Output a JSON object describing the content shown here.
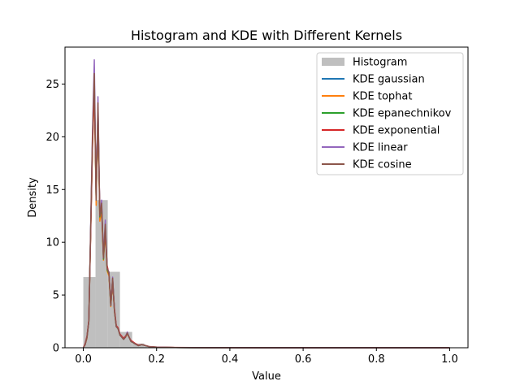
{
  "chart_data": {
    "type": "histogram+line",
    "title": "Histogram and KDE with Different Kernels",
    "xlabel": "Value",
    "ylabel": "Density",
    "xlim": [
      -0.05,
      1.05
    ],
    "ylim": [
      0,
      28.5
    ],
    "xticks": [
      0.0,
      0.2,
      0.4,
      0.6,
      0.8,
      1.0
    ],
    "xtick_labels": [
      "0.0",
      "0.2",
      "0.4",
      "0.6",
      "0.8",
      "1.0"
    ],
    "yticks": [
      0,
      5,
      10,
      15,
      20,
      25
    ],
    "ytick_labels": [
      "0",
      "5",
      "10",
      "15",
      "20",
      "25"
    ],
    "grid": false,
    "legend_position": "top-right",
    "legend": [
      "Histogram",
      "KDE gaussian",
      "KDE tophat",
      "KDE epanechnikov",
      "KDE exponential",
      "KDE linear",
      "KDE cosine"
    ],
    "histogram": {
      "name": "Histogram",
      "color": "#bfbfbf",
      "bin_edges": [
        0.0,
        0.0333,
        0.0667,
        0.1,
        0.1333,
        0.1667,
        0.2,
        0.2333,
        0.2667,
        0.3,
        0.3333,
        0.3667,
        0.4,
        0.4333,
        0.4667,
        0.5,
        0.5333,
        0.5667,
        0.6,
        0.6333,
        0.6667,
        0.7,
        0.7333,
        0.7667,
        0.8,
        0.8333,
        0.8667,
        0.9,
        0.9333,
        0.9667,
        1.0
      ],
      "densities": [
        6.7,
        14.0,
        7.2,
        1.5,
        0.4,
        0.15,
        0.08,
        0.05,
        0.03,
        0.02,
        0.02,
        0.01,
        0.01,
        0.01,
        0.005,
        0.005,
        0.005,
        0.005,
        0.005,
        0.005,
        0.005,
        0.005,
        0.005,
        0.005,
        0.005,
        0.005,
        0.005,
        0.005,
        0.005,
        0.005
      ]
    },
    "kde_x": [
      0.0,
      0.005,
      0.01,
      0.015,
      0.02,
      0.025,
      0.03,
      0.035,
      0.04,
      0.045,
      0.05,
      0.055,
      0.06,
      0.065,
      0.07,
      0.075,
      0.08,
      0.085,
      0.09,
      0.095,
      0.1,
      0.105,
      0.11,
      0.115,
      0.12,
      0.125,
      0.13,
      0.14,
      0.15,
      0.16,
      0.18,
      0.2,
      0.25,
      0.3,
      0.4,
      0.5,
      0.6,
      0.7,
      0.8,
      0.9,
      1.0
    ],
    "series": [
      {
        "name": "KDE gaussian",
        "color": "#1f77b4",
        "values": [
          0.0,
          0.3,
          1.0,
          2.5,
          11.0,
          19.5,
          25.5,
          14.0,
          22.8,
          12.5,
          13.5,
          8.5,
          11.5,
          7.5,
          7.0,
          4.0,
          6.5,
          3.5,
          2.0,
          1.8,
          1.2,
          1.0,
          0.8,
          1.0,
          1.4,
          1.0,
          0.6,
          0.4,
          0.2,
          0.3,
          0.1,
          0.05,
          0.02,
          0.01,
          0.01,
          0.005,
          0.005,
          0.005,
          0.005,
          0.005,
          0.0
        ]
      },
      {
        "name": "KDE tophat",
        "color": "#ff7f0e",
        "values": [
          0.0,
          0.3,
          0.9,
          2.5,
          11.0,
          19.0,
          24.5,
          13.5,
          22.0,
          12.0,
          13.0,
          8.3,
          11.0,
          7.3,
          6.8,
          3.9,
          6.3,
          3.4,
          2.0,
          1.8,
          1.2,
          1.0,
          0.8,
          1.0,
          1.3,
          1.0,
          0.6,
          0.4,
          0.2,
          0.3,
          0.1,
          0.05,
          0.02,
          0.01,
          0.01,
          0.005,
          0.005,
          0.005,
          0.005,
          0.005,
          0.0
        ]
      },
      {
        "name": "KDE epanechnikov",
        "color": "#2ca02c",
        "values": [
          0.0,
          0.3,
          1.0,
          2.5,
          11.0,
          19.5,
          25.3,
          14.0,
          22.6,
          12.4,
          13.4,
          8.4,
          11.4,
          7.4,
          7.0,
          4.0,
          6.5,
          3.5,
          2.0,
          1.8,
          1.2,
          1.0,
          0.8,
          1.0,
          1.4,
          1.0,
          0.6,
          0.4,
          0.2,
          0.3,
          0.1,
          0.05,
          0.02,
          0.01,
          0.01,
          0.005,
          0.005,
          0.005,
          0.005,
          0.005,
          0.0
        ]
      },
      {
        "name": "KDE exponential",
        "color": "#d62728",
        "values": [
          0.0,
          0.4,
          1.1,
          2.6,
          10.5,
          19.0,
          24.8,
          14.5,
          22.0,
          13.0,
          13.3,
          8.8,
          11.0,
          7.8,
          7.0,
          4.3,
          6.2,
          3.7,
          2.1,
          1.9,
          1.3,
          1.1,
          0.9,
          1.1,
          1.4,
          1.0,
          0.7,
          0.45,
          0.25,
          0.3,
          0.12,
          0.06,
          0.03,
          0.015,
          0.01,
          0.005,
          0.005,
          0.005,
          0.005,
          0.005,
          0.0
        ]
      },
      {
        "name": "KDE linear",
        "color": "#9467bd",
        "values": [
          0.0,
          0.3,
          1.0,
          2.5,
          11.5,
          20.5,
          27.3,
          14.0,
          23.8,
          12.5,
          14.0,
          8.5,
          12.1,
          7.5,
          7.2,
          4.0,
          6.7,
          3.5,
          2.0,
          1.8,
          1.2,
          1.0,
          0.8,
          1.0,
          1.5,
          1.0,
          0.6,
          0.4,
          0.2,
          0.3,
          0.1,
          0.05,
          0.02,
          0.01,
          0.01,
          0.005,
          0.005,
          0.005,
          0.005,
          0.005,
          0.0
        ]
      },
      {
        "name": "KDE cosine",
        "color": "#8c564b",
        "values": [
          0.0,
          0.3,
          1.0,
          2.5,
          11.2,
          20.0,
          26.0,
          14.0,
          23.2,
          12.5,
          13.7,
          8.5,
          11.7,
          7.5,
          7.1,
          4.0,
          6.6,
          3.5,
          2.0,
          1.8,
          1.2,
          1.0,
          0.8,
          1.0,
          1.4,
          1.0,
          0.6,
          0.4,
          0.2,
          0.3,
          0.1,
          0.05,
          0.02,
          0.01,
          0.01,
          0.005,
          0.005,
          0.005,
          0.005,
          0.005,
          0.0
        ]
      }
    ]
  }
}
